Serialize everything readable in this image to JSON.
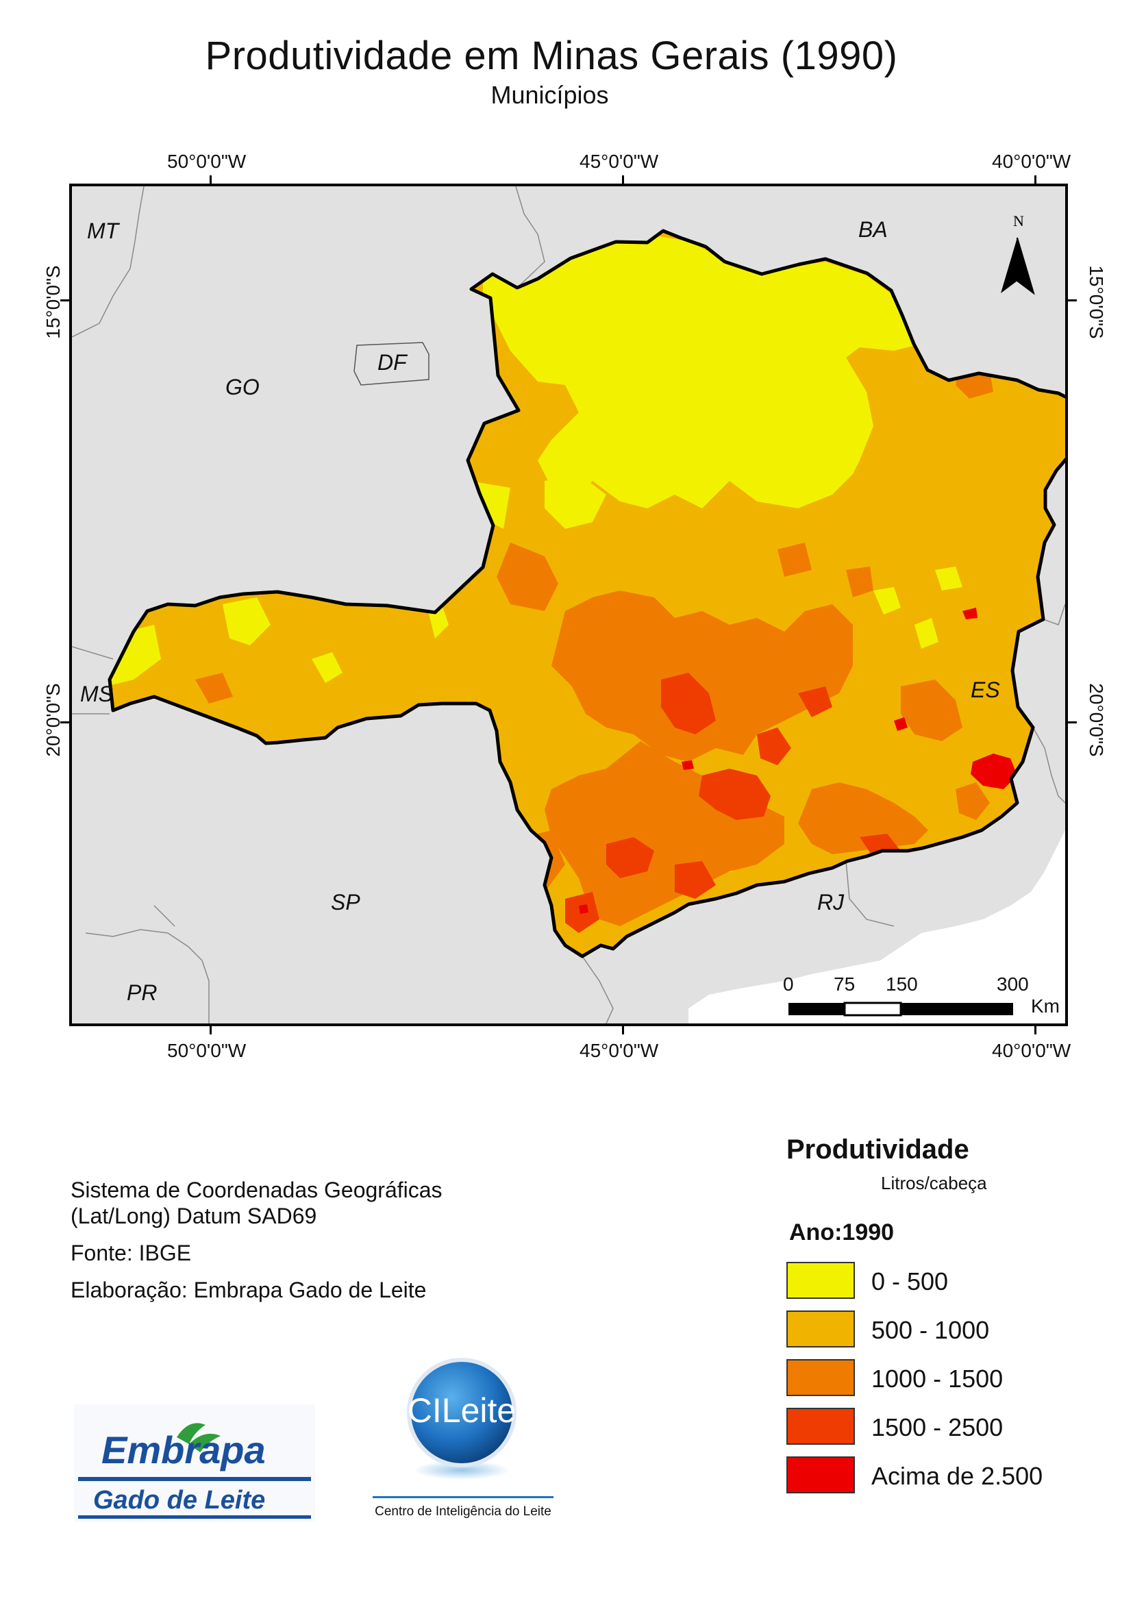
{
  "title": "Produtividade em Minas Gerais (1990)",
  "subtitle": "Municípios",
  "graticule": {
    "lon_top": [
      "50°0'0\"W",
      "45°0'0\"W",
      "40°0'0\"W"
    ],
    "lon_bottom": [
      "50°0'0\"W",
      "45°0'0\"W",
      "40°0'0\"W"
    ],
    "lat_left": [
      "15°0'0\"S",
      "20°0'0\"S"
    ],
    "lat_right": [
      "15°0'0\"S",
      "20°0'0\"S"
    ]
  },
  "states": {
    "MT": "MT",
    "BA": "BA",
    "GO": "GO",
    "DF": "DF",
    "MS": "MS",
    "ES": "ES",
    "SP": "SP",
    "RJ": "RJ",
    "PR": "PR"
  },
  "north_arrow": {
    "label": "N",
    "icon": "north-arrow-icon"
  },
  "scale_bar": {
    "labels": [
      "0",
      "75",
      "150",
      "300"
    ],
    "unit": "Km"
  },
  "notes": {
    "crs_line1": "Sistema de Coordenadas Geográficas",
    "crs_line2": "(Lat/Long) Datum SAD69",
    "source": "Fonte: IBGE",
    "author": "Elaboração: Embrapa Gado de Leite"
  },
  "legend": {
    "title": "Produtividade",
    "units": "Litros/cabeça",
    "year": "Ano:1990",
    "classes": [
      {
        "label": "0 - 500",
        "color": "#f2f200"
      },
      {
        "label": "500 - 1000",
        "color": "#f0b400"
      },
      {
        "label": "1000 - 1500",
        "color": "#ef7c00"
      },
      {
        "label": "1500 - 2500",
        "color": "#ef3c00"
      },
      {
        "label": "Acima de 2.500",
        "color": "#ec0000"
      }
    ]
  },
  "logos": {
    "embrapa_line1": "Embrapa",
    "embrapa_line2": "Gado de Leite",
    "cileite_badge": "CILeite",
    "cileite_caption": "Centro de Inteligência do Leite"
  },
  "colors": {
    "background_states": "#e1e1e1",
    "border": "#000000",
    "embrapa_blue": "#1a4f9c",
    "embrapa_green": "#2f9e3a"
  }
}
